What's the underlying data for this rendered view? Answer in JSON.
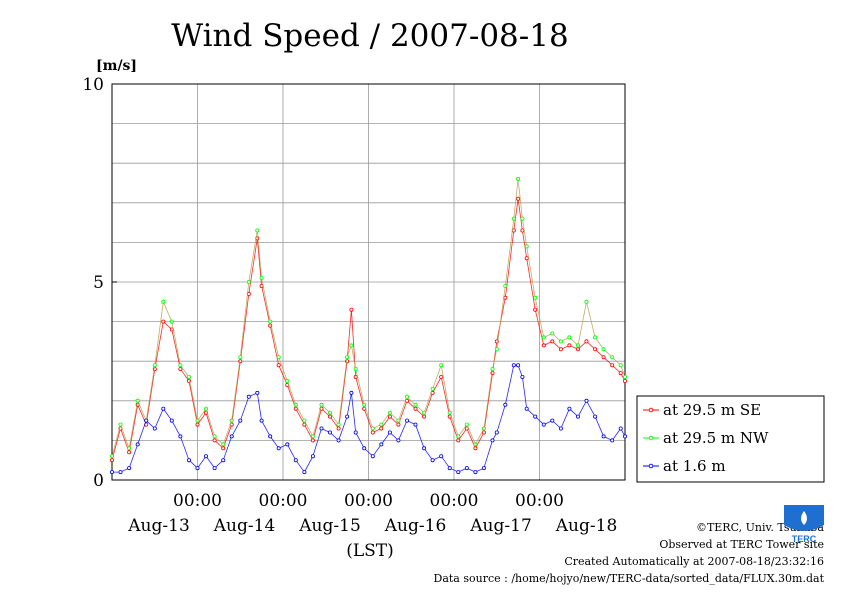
{
  "chart_data": {
    "type": "line",
    "title": "Wind Speed / 2007-08-18",
    "y_unit": "[m/s]",
    "ylim": [
      0,
      10
    ],
    "yticks": [
      "0",
      "5",
      "10"
    ],
    "xlabel": "(LST)",
    "x_time_labels": [
      "00:00",
      "00:00",
      "00:00",
      "00:00",
      "00:00"
    ],
    "x_day_labels": [
      "Aug-13",
      "Aug-14",
      "Aug-15",
      "Aug-16",
      "Aug-17",
      "Aug-18"
    ],
    "x_range_days": [
      12.0,
      18.0
    ],
    "grid": true,
    "legend_position": "right",
    "series": [
      {
        "name": "at 29.5 m SE",
        "color": "#ff0000",
        "points": [
          [
            12.0,
            0.5
          ],
          [
            12.1,
            1.3
          ],
          [
            12.2,
            0.7
          ],
          [
            12.3,
            1.9
          ],
          [
            12.4,
            1.4
          ],
          [
            12.5,
            2.8
          ],
          [
            12.6,
            4.0
          ],
          [
            12.7,
            3.8
          ],
          [
            12.8,
            2.8
          ],
          [
            12.9,
            2.5
          ],
          [
            13.0,
            1.4
          ],
          [
            13.1,
            1.7
          ],
          [
            13.2,
            1.0
          ],
          [
            13.3,
            0.8
          ],
          [
            13.4,
            1.4
          ],
          [
            13.5,
            3.0
          ],
          [
            13.6,
            4.7
          ],
          [
            13.7,
            6.1
          ],
          [
            13.75,
            4.9
          ],
          [
            13.85,
            3.9
          ],
          [
            13.95,
            2.9
          ],
          [
            14.05,
            2.4
          ],
          [
            14.15,
            1.8
          ],
          [
            14.25,
            1.4
          ],
          [
            14.35,
            1.0
          ],
          [
            14.45,
            1.8
          ],
          [
            14.55,
            1.6
          ],
          [
            14.65,
            1.3
          ],
          [
            14.75,
            3.0
          ],
          [
            14.8,
            4.3
          ],
          [
            14.85,
            2.6
          ],
          [
            14.95,
            1.8
          ],
          [
            15.05,
            1.2
          ],
          [
            15.15,
            1.3
          ],
          [
            15.25,
            1.6
          ],
          [
            15.35,
            1.4
          ],
          [
            15.45,
            2.0
          ],
          [
            15.55,
            1.8
          ],
          [
            15.65,
            1.6
          ],
          [
            15.75,
            2.2
          ],
          [
            15.85,
            2.6
          ],
          [
            15.95,
            1.6
          ],
          [
            16.05,
            1.0
          ],
          [
            16.15,
            1.3
          ],
          [
            16.25,
            0.8
          ],
          [
            16.35,
            1.2
          ],
          [
            16.45,
            2.7
          ],
          [
            16.5,
            3.5
          ],
          [
            16.6,
            4.6
          ],
          [
            16.7,
            6.3
          ],
          [
            16.75,
            7.1
          ],
          [
            16.8,
            6.3
          ],
          [
            16.85,
            5.6
          ],
          [
            16.95,
            4.3
          ],
          [
            17.05,
            3.4
          ],
          [
            17.15,
            3.5
          ],
          [
            17.25,
            3.3
          ],
          [
            17.35,
            3.4
          ],
          [
            17.45,
            3.3
          ],
          [
            17.55,
            3.5
          ],
          [
            17.65,
            3.3
          ],
          [
            17.75,
            3.1
          ],
          [
            17.85,
            2.9
          ],
          [
            17.95,
            2.7
          ],
          [
            18.0,
            2.5
          ]
        ]
      },
      {
        "name": "at 29.5 m NW",
        "color": "#00ff00",
        "points": [
          [
            12.0,
            0.6
          ],
          [
            12.1,
            1.4
          ],
          [
            12.2,
            0.8
          ],
          [
            12.3,
            2.0
          ],
          [
            12.4,
            1.5
          ],
          [
            12.5,
            2.9
          ],
          [
            12.6,
            4.5
          ],
          [
            12.7,
            4.0
          ],
          [
            12.8,
            2.9
          ],
          [
            12.9,
            2.6
          ],
          [
            13.0,
            1.5
          ],
          [
            13.1,
            1.8
          ],
          [
            13.2,
            1.1
          ],
          [
            13.3,
            0.9
          ],
          [
            13.4,
            1.5
          ],
          [
            13.5,
            3.1
          ],
          [
            13.6,
            5.0
          ],
          [
            13.7,
            6.3
          ],
          [
            13.75,
            5.1
          ],
          [
            13.85,
            4.0
          ],
          [
            13.95,
            3.1
          ],
          [
            14.05,
            2.5
          ],
          [
            14.15,
            1.9
          ],
          [
            14.25,
            1.5
          ],
          [
            14.35,
            1.1
          ],
          [
            14.45,
            1.9
          ],
          [
            14.55,
            1.7
          ],
          [
            14.65,
            1.4
          ],
          [
            14.75,
            3.1
          ],
          [
            14.8,
            3.4
          ],
          [
            14.85,
            2.8
          ],
          [
            14.95,
            1.9
          ],
          [
            15.05,
            1.3
          ],
          [
            15.15,
            1.4
          ],
          [
            15.25,
            1.7
          ],
          [
            15.35,
            1.5
          ],
          [
            15.45,
            2.1
          ],
          [
            15.55,
            1.9
          ],
          [
            15.65,
            1.7
          ],
          [
            15.75,
            2.3
          ],
          [
            15.85,
            2.9
          ],
          [
            15.95,
            1.7
          ],
          [
            16.05,
            1.1
          ],
          [
            16.15,
            1.4
          ],
          [
            16.25,
            0.9
          ],
          [
            16.35,
            1.3
          ],
          [
            16.45,
            2.8
          ],
          [
            16.5,
            3.3
          ],
          [
            16.6,
            4.9
          ],
          [
            16.7,
            6.6
          ],
          [
            16.75,
            7.6
          ],
          [
            16.8,
            6.6
          ],
          [
            16.85,
            5.9
          ],
          [
            16.95,
            4.6
          ],
          [
            17.05,
            3.6
          ],
          [
            17.15,
            3.7
          ],
          [
            17.25,
            3.5
          ],
          [
            17.35,
            3.6
          ],
          [
            17.45,
            3.4
          ],
          [
            17.55,
            4.5
          ],
          [
            17.65,
            3.6
          ],
          [
            17.75,
            3.3
          ],
          [
            17.85,
            3.1
          ],
          [
            17.95,
            2.9
          ],
          [
            18.0,
            2.6
          ]
        ]
      },
      {
        "name": "at 1.6 m",
        "color": "#0000ff",
        "points": [
          [
            12.0,
            0.2
          ],
          [
            12.1,
            0.2
          ],
          [
            12.2,
            0.3
          ],
          [
            12.3,
            0.9
          ],
          [
            12.4,
            1.5
          ],
          [
            12.5,
            1.3
          ],
          [
            12.6,
            1.8
          ],
          [
            12.7,
            1.5
          ],
          [
            12.8,
            1.1
          ],
          [
            12.9,
            0.5
          ],
          [
            13.0,
            0.3
          ],
          [
            13.1,
            0.6
          ],
          [
            13.2,
            0.3
          ],
          [
            13.3,
            0.5
          ],
          [
            13.4,
            1.1
          ],
          [
            13.5,
            1.5
          ],
          [
            13.6,
            2.1
          ],
          [
            13.7,
            2.2
          ],
          [
            13.75,
            1.5
          ],
          [
            13.85,
            1.1
          ],
          [
            13.95,
            0.8
          ],
          [
            14.05,
            0.9
          ],
          [
            14.15,
            0.5
          ],
          [
            14.25,
            0.2
          ],
          [
            14.35,
            0.6
          ],
          [
            14.45,
            1.3
          ],
          [
            14.55,
            1.2
          ],
          [
            14.65,
            1.0
          ],
          [
            14.75,
            1.6
          ],
          [
            14.8,
            2.2
          ],
          [
            14.85,
            1.2
          ],
          [
            14.95,
            0.8
          ],
          [
            15.05,
            0.6
          ],
          [
            15.15,
            0.9
          ],
          [
            15.25,
            1.2
          ],
          [
            15.35,
            1.0
          ],
          [
            15.45,
            1.5
          ],
          [
            15.55,
            1.4
          ],
          [
            15.65,
            0.8
          ],
          [
            15.75,
            0.5
          ],
          [
            15.85,
            0.6
          ],
          [
            15.95,
            0.3
          ],
          [
            16.05,
            0.2
          ],
          [
            16.15,
            0.3
          ],
          [
            16.25,
            0.2
          ],
          [
            16.35,
            0.3
          ],
          [
            16.45,
            1.0
          ],
          [
            16.5,
            1.2
          ],
          [
            16.6,
            1.9
          ],
          [
            16.7,
            2.9
          ],
          [
            16.75,
            2.9
          ],
          [
            16.8,
            2.6
          ],
          [
            16.85,
            1.8
          ],
          [
            16.95,
            1.6
          ],
          [
            17.05,
            1.4
          ],
          [
            17.15,
            1.5
          ],
          [
            17.25,
            1.3
          ],
          [
            17.35,
            1.8
          ],
          [
            17.45,
            1.6
          ],
          [
            17.55,
            2.0
          ],
          [
            17.65,
            1.6
          ],
          [
            17.75,
            1.1
          ],
          [
            17.85,
            1.0
          ],
          [
            17.95,
            1.3
          ],
          [
            18.0,
            1.1
          ]
        ]
      }
    ]
  },
  "credits": [
    "©TERC, Univ. Tsukuba",
    "Observed at TERC Tower site",
    "Created Automatically at 2007-08-18/23:32:16",
    "Data source : /home/hojyo/new/TERC-data/sorted_data/FLUX.30m.dat"
  ],
  "logo": {
    "text": "TERC",
    "color": "#1e6fd0"
  }
}
